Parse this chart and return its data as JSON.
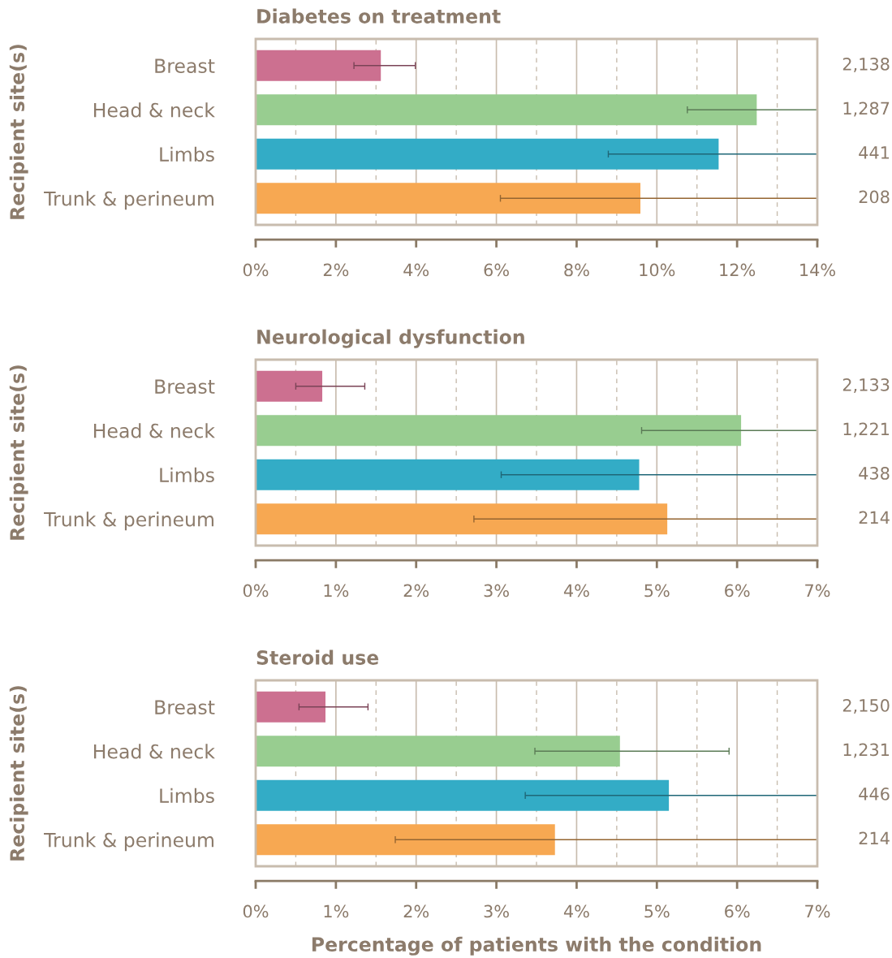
{
  "chart_data": [
    {
      "type": "bar",
      "orientation": "horizontal",
      "title": "Diabetes on treatment",
      "ylabel": "Recipient site(s)",
      "categories": [
        "Breast",
        "Head & neck",
        "Limbs",
        "Trunk & perineum"
      ],
      "values": [
        3.12,
        12.49,
        11.54,
        9.59
      ],
      "colors": [
        "#cc7090",
        "#98cd90",
        "#33acc6",
        "#f7a852"
      ],
      "errors": [
        [
          2.45,
          3.98
        ],
        [
          10.76,
          14
        ],
        [
          8.79,
          14
        ],
        [
          6.1,
          14
        ]
      ],
      "xlim": [
        0,
        14
      ],
      "xticks": [
        {
          "value": 0,
          "label": "0%"
        },
        {
          "value": 2,
          "label": "2%"
        },
        {
          "value": 4,
          "label": "4%"
        },
        {
          "value": 6,
          "label": "6%"
        },
        {
          "value": 8,
          "label": "8%"
        },
        {
          "value": 10,
          "label": "10%"
        },
        {
          "value": 12,
          "label": "12%"
        },
        {
          "value": 14,
          "label": "14%"
        }
      ],
      "grid": "x",
      "annotations": [
        "2,138",
        "1,287",
        "441",
        "208"
      ]
    },
    {
      "type": "bar",
      "orientation": "horizontal",
      "title": "Neurological dysfunction",
      "ylabel": "Recipient site(s)",
      "categories": [
        "Breast",
        "Head & neck",
        "Limbs",
        "Trunk & perineum"
      ],
      "values": [
        0.83,
        6.05,
        4.78,
        5.13
      ],
      "colors": [
        "#cc7090",
        "#98cd90",
        "#33acc6",
        "#f7a852"
      ],
      "errors": [
        [
          0.5,
          1.36
        ],
        [
          4.81,
          7
        ],
        [
          3.06,
          7
        ],
        [
          2.72,
          7
        ]
      ],
      "xlim": [
        0,
        7
      ],
      "xticks": [
        {
          "value": 0,
          "label": "0%"
        },
        {
          "value": 1,
          "label": "1%"
        },
        {
          "value": 2,
          "label": "2%"
        },
        {
          "value": 3,
          "label": "3%"
        },
        {
          "value": 4,
          "label": "4%"
        },
        {
          "value": 5,
          "label": "5%"
        },
        {
          "value": 6,
          "label": "6%"
        },
        {
          "value": 7,
          "label": "7%"
        }
      ],
      "grid": "x",
      "annotations": [
        "2,133",
        "1,221",
        "438",
        "214"
      ]
    },
    {
      "type": "bar",
      "orientation": "horizontal",
      "title": "Steroid use",
      "ylabel": "Recipient site(s)",
      "xlabel": "Percentage of patients with the condition",
      "categories": [
        "Breast",
        "Head & neck",
        "Limbs",
        "Trunk & perineum"
      ],
      "values": [
        0.87,
        4.54,
        5.15,
        3.73
      ],
      "colors": [
        "#cc7090",
        "#98cd90",
        "#33acc6",
        "#f7a852"
      ],
      "errors": [
        [
          0.54,
          1.4
        ],
        [
          3.48,
          5.9
        ],
        [
          3.36,
          7
        ],
        [
          1.74,
          7
        ]
      ],
      "xlim": [
        0,
        7
      ],
      "xticks": [
        {
          "value": 0,
          "label": "0%"
        },
        {
          "value": 1,
          "label": "1%"
        },
        {
          "value": 2,
          "label": "2%"
        },
        {
          "value": 3,
          "label": "3%"
        },
        {
          "value": 4,
          "label": "4%"
        },
        {
          "value": 5,
          "label": "5%"
        },
        {
          "value": 6,
          "label": "6%"
        },
        {
          "value": 7,
          "label": "7%"
        }
      ],
      "grid": "x",
      "annotations": [
        "2,150",
        "1,231",
        "446",
        "214"
      ]
    }
  ]
}
